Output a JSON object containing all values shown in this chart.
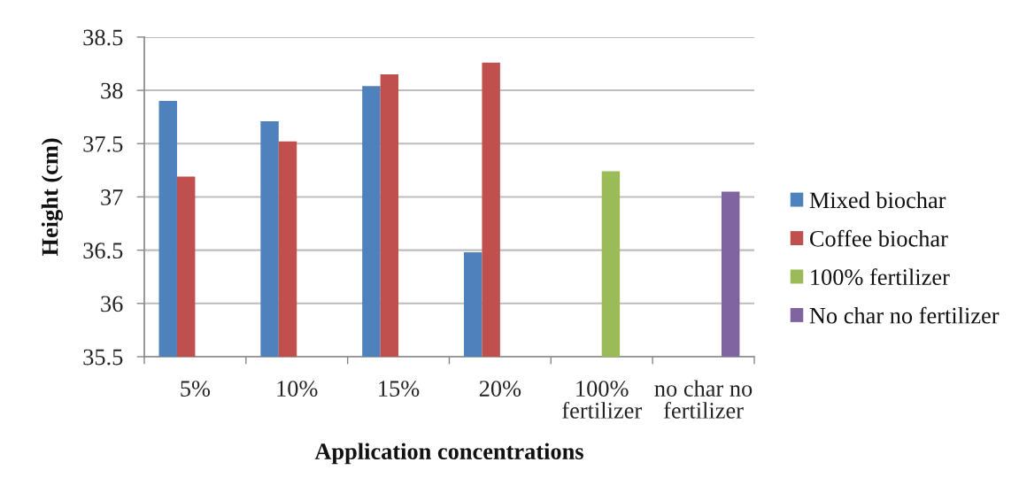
{
  "chart_data": {
    "type": "bar",
    "xlabel": "Application concentrations",
    "ylabel": "Height (cm)",
    "categories": [
      "5%",
      "10%",
      "15%",
      "20%",
      "100%\nfertilizer",
      "no char no\nfertilizer"
    ],
    "series": [
      {
        "name": "Mixed biochar",
        "color": "#4f81bd",
        "values": [
          37.9,
          37.71,
          38.04,
          36.48,
          null,
          null
        ]
      },
      {
        "name": "Coffee biochar",
        "color": "#c0504d",
        "values": [
          37.19,
          37.52,
          38.15,
          38.26,
          null,
          null
        ]
      },
      {
        "name": "100% fertilizer",
        "color": "#9bbb59",
        "values": [
          null,
          null,
          null,
          null,
          37.24,
          null
        ]
      },
      {
        "name": "No char no fertilizer",
        "color": "#8064a2",
        "values": [
          null,
          null,
          null,
          null,
          null,
          37.05
        ]
      }
    ],
    "ylim": [
      35.5,
      38.5
    ],
    "yticks": [
      35.5,
      36,
      36.5,
      37,
      37.5,
      38,
      38.5
    ],
    "grid": "y",
    "legend": "right"
  }
}
